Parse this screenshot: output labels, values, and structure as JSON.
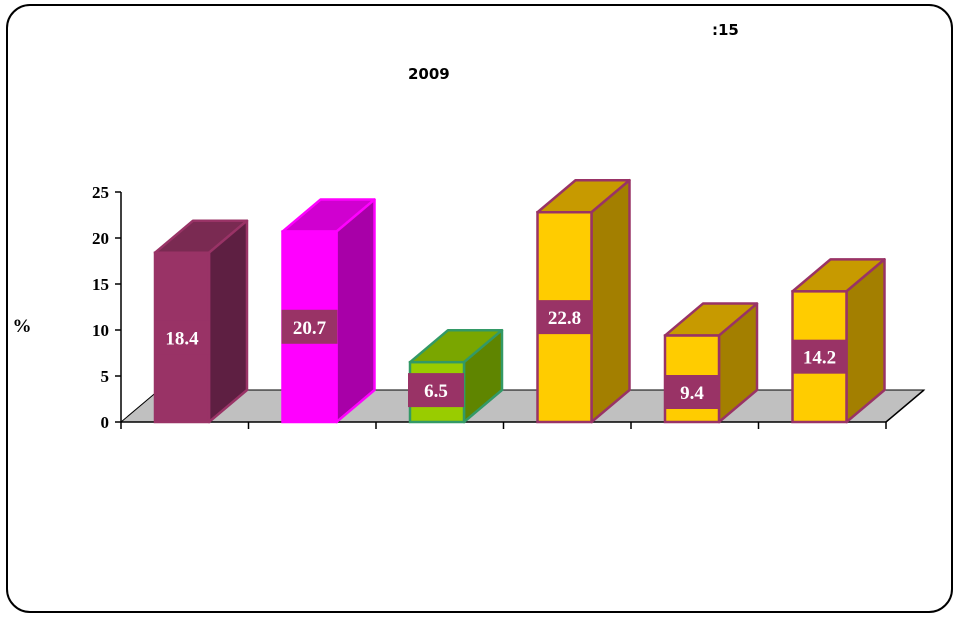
{
  "header": {
    "figure_number": ":15",
    "year": "2009"
  },
  "chart_data": {
    "type": "bar",
    "categories": [
      "",
      "",
      "",
      "",
      "",
      ""
    ],
    "values": [
      18.4,
      20.7,
      6.5,
      22.8,
      9.4,
      14.2
    ],
    "value_labels": [
      "18.4",
      "20.7",
      "6.5",
      "22.8",
      "9.4",
      "14.2"
    ],
    "title": "",
    "xlabel": "",
    "ylabel": "%",
    "ylim": [
      0,
      25
    ],
    "yticks": [
      "0",
      "5",
      "10",
      "15",
      "20",
      "25"
    ],
    "grid": false,
    "legend": "none",
    "style": "3d",
    "bar_colors": [
      {
        "front": "#993366",
        "side": "#5e1f42",
        "top": "#7a2a52",
        "edge": "#993366"
      },
      {
        "front": "#ff00ff",
        "side": "#a800a8",
        "top": "#d000d0",
        "edge": "#ff00ff"
      },
      {
        "front": "#99cc00",
        "side": "#5f8500",
        "top": "#7aa600",
        "edge": "#339966"
      },
      {
        "front": "#ffcc00",
        "side": "#a37f00",
        "top": "#c79a00",
        "edge": "#993366"
      },
      {
        "front": "#ffcc00",
        "side": "#a37f00",
        "top": "#c79a00",
        "edge": "#993366"
      },
      {
        "front": "#ffcc00",
        "side": "#a37f00",
        "top": "#c79a00",
        "edge": "#993366"
      }
    ],
    "floor_color": "#c0c0c0",
    "label_box_color": "#993366",
    "label_text_color": "#ffffff"
  }
}
